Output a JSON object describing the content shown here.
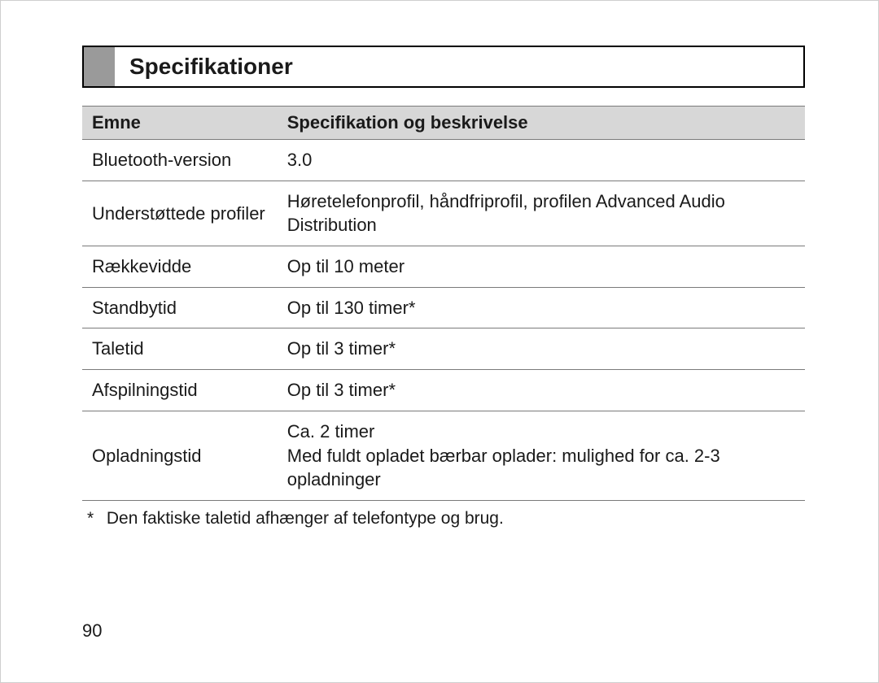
{
  "title": "Specifikationer",
  "table": {
    "columns": [
      "Emne",
      "Specifikation og beskrivelse"
    ],
    "column_widths_pct": [
      27,
      73
    ],
    "header_bg": "#d7d7d7",
    "border_color": "#7a7a7a",
    "font_size_pt": 16,
    "rows": [
      {
        "key": "Bluetooth-version",
        "value": "3.0"
      },
      {
        "key": "Understøttede profiler",
        "value": "Høretelefonprofil, håndfriprofil, profilen Advanced Audio Distribution"
      },
      {
        "key": "Rækkevidde",
        "value": "Op til 10 meter"
      },
      {
        "key": "Standbytid",
        "value": "Op til 130 timer*"
      },
      {
        "key": "Taletid",
        "value": "Op til 3 timer*"
      },
      {
        "key": "Afspilningstid",
        "value": "Op til 3 timer*"
      },
      {
        "key": "Opladningstid",
        "value": "Ca. 2 timer\nMed fuldt opladet bærbar oplader: mulighed for ca. 2-3 opladninger"
      }
    ]
  },
  "footnote": {
    "marker": "*",
    "text": "Den faktiske taletid afhænger af telefontype og brug."
  },
  "page_number": "90",
  "style": {
    "page_bg": "#ffffff",
    "text_color": "#1a1a1a",
    "title_block_color": "#9a9a9a",
    "title_border_color": "#000000",
    "title_fontsize_pt": 21,
    "body_fontsize_pt": 16
  }
}
